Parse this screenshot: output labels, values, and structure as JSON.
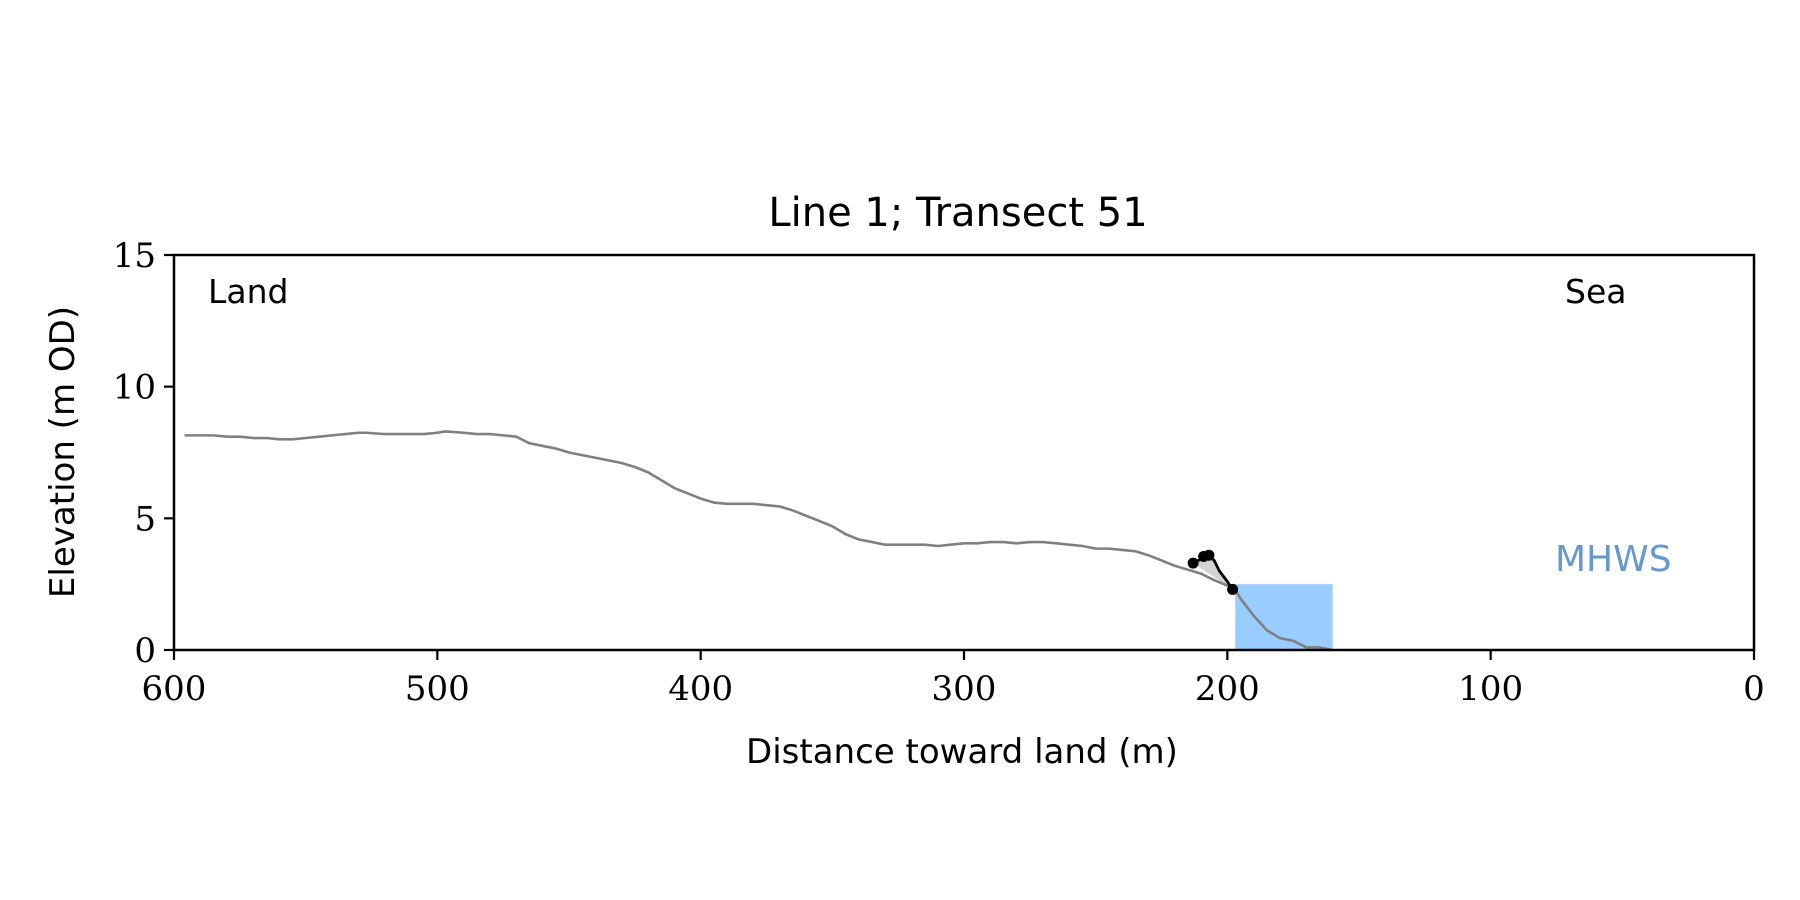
{
  "chart_data": {
    "type": "line",
    "title": "Line 1; Transect 51",
    "xlabel": "Distance toward land (m)",
    "ylabel": "Elevation (m OD)",
    "xlim": [
      600,
      0
    ],
    "ylim": [
      0,
      15
    ],
    "x_ticks": [
      600,
      500,
      400,
      300,
      200,
      100,
      0
    ],
    "x_tick_labels": [
      "600",
      "500",
      "400",
      "300",
      "200",
      "100",
      "0"
    ],
    "y_ticks": [
      0,
      5,
      10,
      15
    ],
    "y_tick_labels": [
      "0",
      "5",
      "10",
      "15"
    ],
    "grid": false,
    "annotations": {
      "land": "Land",
      "sea": "Sea",
      "mhws": "MHWS"
    },
    "colors": {
      "profile": "#808080",
      "feature": "#000000",
      "feature_fill": "#d3d3d3",
      "water": "#99ccff",
      "mhws_text": "#6699cc"
    },
    "series": [
      {
        "x": [
          596,
          590,
          585,
          580,
          575,
          570,
          565,
          560,
          555,
          550,
          545,
          540,
          535,
          530,
          527,
          520,
          515,
          510,
          505,
          500,
          497,
          490,
          485,
          480,
          475,
          470,
          465,
          460,
          455,
          450,
          445,
          440,
          435,
          430,
          425,
          420,
          415,
          410,
          405,
          400,
          395,
          390,
          385,
          380,
          375,
          370,
          365,
          360,
          355,
          350,
          345,
          340,
          335,
          330,
          325,
          320,
          315,
          310,
          305,
          300,
          295,
          290,
          285,
          280,
          275,
          270,
          265,
          260,
          255,
          250,
          245,
          240,
          235,
          230,
          225,
          220,
          215,
          210,
          205,
          200,
          197,
          195,
          190,
          185,
          180,
          175,
          170,
          165,
          160
        ],
        "y": [
          8.15,
          8.15,
          8.15,
          8.1,
          8.1,
          8.05,
          8.05,
          8.0,
          8.0,
          8.05,
          8.1,
          8.15,
          8.2,
          8.25,
          8.25,
          8.2,
          8.2,
          8.2,
          8.2,
          8.25,
          8.3,
          8.25,
          8.2,
          8.2,
          8.15,
          8.1,
          7.85,
          7.75,
          7.65,
          7.5,
          7.4,
          7.3,
          7.2,
          7.1,
          6.95,
          6.75,
          6.45,
          6.15,
          5.95,
          5.75,
          5.6,
          5.55,
          5.55,
          5.55,
          5.5,
          5.45,
          5.3,
          5.1,
          4.9,
          4.7,
          4.4,
          4.2,
          4.1,
          4.0,
          4.0,
          4.0,
          4.0,
          3.95,
          4.0,
          4.05,
          4.05,
          4.1,
          4.1,
          4.05,
          4.1,
          4.1,
          4.05,
          4.0,
          3.95,
          3.85,
          3.85,
          3.8,
          3.75,
          3.6,
          3.4,
          3.2,
          3.05,
          2.9,
          2.65,
          2.45,
          2.3,
          1.95,
          1.3,
          0.75,
          0.45,
          0.35,
          0.1,
          0.1,
          0.0
        ]
      },
      {
        "x": [
          213,
          210,
          209,
          207,
          205,
          203,
          200,
          198
        ],
        "y": [
          3.3,
          3.45,
          3.55,
          3.6,
          3.4,
          3.0,
          2.6,
          2.3
        ]
      }
    ],
    "feature_points": {
      "x": [
        213,
        209,
        207,
        198
      ],
      "y": [
        3.3,
        3.55,
        3.6,
        2.3
      ]
    },
    "water_block": {
      "x_start": 197,
      "x_end": 160,
      "level": 2.5
    },
    "mhws_level": 3.3
  }
}
